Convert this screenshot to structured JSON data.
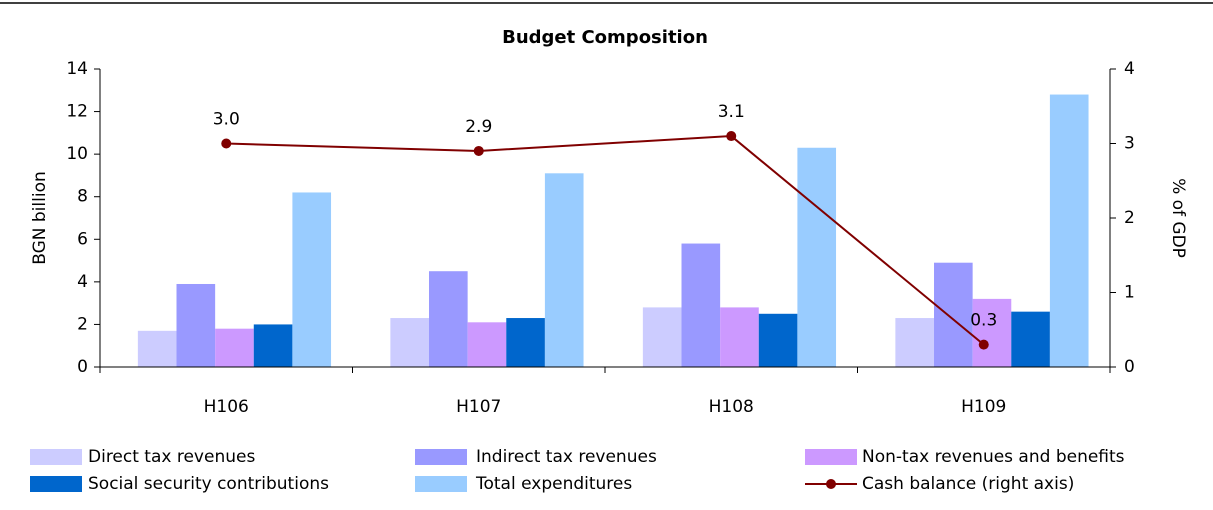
{
  "chart_data": {
    "type": "bar",
    "title": "Budget Composition",
    "categories": [
      "H106",
      "H107",
      "H108",
      "H109"
    ],
    "ylabel": "BGN billion",
    "y2label": "% of GDP",
    "ylim": [
      0,
      14
    ],
    "yticks": [
      0,
      2,
      4,
      6,
      8,
      10,
      12,
      14
    ],
    "y2lim": [
      0,
      4
    ],
    "y2ticks": [
      0,
      1,
      2,
      3,
      4
    ],
    "grid": false,
    "legend": "bottom",
    "series": [
      {
        "name": "Direct tax revenues",
        "color": "#ccccff",
        "values": [
          1.7,
          2.3,
          2.8,
          2.3
        ]
      },
      {
        "name": "Indirect tax revenues",
        "color": "#9999ff",
        "values": [
          3.9,
          4.5,
          5.8,
          4.9
        ]
      },
      {
        "name": "Non-tax revenues and benefits",
        "color": "#cc99ff",
        "values": [
          1.8,
          2.1,
          2.8,
          3.2
        ]
      },
      {
        "name": "Social security contributions",
        "color": "#0066cc",
        "values": [
          2.0,
          2.3,
          2.5,
          2.6
        ]
      },
      {
        "name": "Total expenditures",
        "color": "#99ccff",
        "values": [
          8.2,
          9.1,
          10.3,
          12.8
        ]
      },
      {
        "name": "Cash balance (right axis)",
        "color": "#800000",
        "type": "line",
        "axis": "y2",
        "values": [
          3.0,
          2.9,
          3.1,
          0.3
        ],
        "value_labels": [
          "3.0",
          "2.9",
          "3.1",
          "0.3"
        ]
      }
    ]
  }
}
